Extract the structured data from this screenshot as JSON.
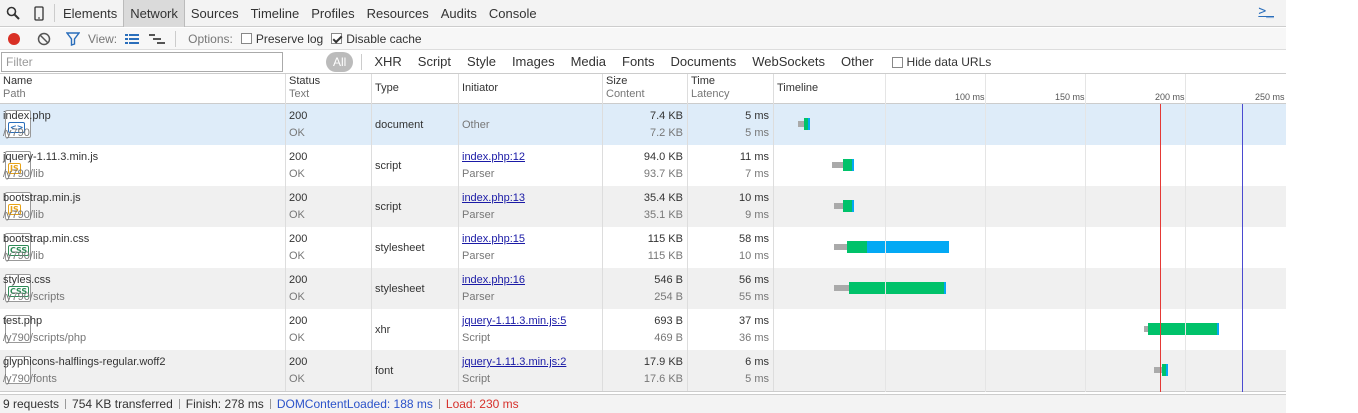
{
  "tabs": [
    "Elements",
    "Network",
    "Sources",
    "Timeline",
    "Profiles",
    "Resources",
    "Audits",
    "Console"
  ],
  "active_tab": "Network",
  "console_toggle": ">_",
  "controls": {
    "view_label": "View:",
    "options_label": "Options:",
    "preserve_log": "Preserve log",
    "disable_cache": "Disable cache",
    "preserve_log_checked": false,
    "disable_cache_checked": true
  },
  "filter": {
    "placeholder": "Filter",
    "types": [
      "All",
      "XHR",
      "Script",
      "Style",
      "Images",
      "Media",
      "Fonts",
      "Documents",
      "WebSockets",
      "Other"
    ],
    "active_type": "All",
    "hide_data_urls": "Hide data URLs"
  },
  "columns": {
    "name": "Name",
    "path": "Path",
    "status": "Status",
    "text": "Text",
    "type": "Type",
    "initiator": "Initiator",
    "size": "Size",
    "content": "Content",
    "time": "Time",
    "latency": "Latency",
    "timeline": "Timeline"
  },
  "timeline_ticks": [
    "100 ms",
    "150 ms",
    "200 ms",
    "250 ms"
  ],
  "requests": [
    {
      "name": "index.php",
      "path": "/y790",
      "status": "200",
      "text": "OK",
      "type": "document",
      "initiator": "Other",
      "initiator_link": false,
      "initiator_sub": "",
      "size": "7.4 KB",
      "content": "7.2 KB",
      "time": "5 ms",
      "latency": "5 ms",
      "icon": "html-icon",
      "badge": "<>",
      "badge_color": "#2a6ebb",
      "timing_ms": {
        "start": 6,
        "wait": 3,
        "total": 5
      }
    },
    {
      "name": "jquery-1.11.3.min.js",
      "path": "/y790/lib",
      "status": "200",
      "text": "OK",
      "type": "script",
      "initiator": "index.php:12",
      "initiator_link": true,
      "initiator_sub": "Parser",
      "size": "94.0 KB",
      "content": "93.7 KB",
      "time": "11 ms",
      "latency": "7 ms",
      "icon": "js-icon",
      "badge": "JS",
      "badge_color": "#e8a317",
      "timing_ms": {
        "start": 23,
        "wait": 6,
        "total": 11
      }
    },
    {
      "name": "bootstrap.min.js",
      "path": "/y790/lib",
      "status": "200",
      "text": "OK",
      "type": "script",
      "initiator": "index.php:13",
      "initiator_link": true,
      "initiator_sub": "Parser",
      "size": "35.4 KB",
      "content": "35.1 KB",
      "time": "10 ms",
      "latency": "9 ms",
      "icon": "js-icon",
      "badge": "JS",
      "badge_color": "#e8a317",
      "timing_ms": {
        "start": 24,
        "wait": 5,
        "total": 10
      }
    },
    {
      "name": "bootstrap.min.css",
      "path": "/y790/lib",
      "status": "200",
      "text": "OK",
      "type": "stylesheet",
      "initiator": "index.php:15",
      "initiator_link": true,
      "initiator_sub": "Parser",
      "size": "115 KB",
      "content": "115 KB",
      "time": "58 ms",
      "latency": "10 ms",
      "icon": "css-icon",
      "badge": "CSS",
      "badge_color": "#2e8b57",
      "timing_ms": {
        "start": 24,
        "wait": 7,
        "total": 58
      }
    },
    {
      "name": "styles.css",
      "path": "/y790/scripts",
      "status": "200",
      "text": "OK",
      "type": "stylesheet",
      "initiator": "index.php:16",
      "initiator_link": true,
      "initiator_sub": "Parser",
      "size": "546 B",
      "content": "254 B",
      "time": "56 ms",
      "latency": "55 ms",
      "icon": "css-icon",
      "badge": "CSS",
      "badge_color": "#2e8b57",
      "timing_ms": {
        "start": 24,
        "wait": 8,
        "total": 56
      }
    },
    {
      "name": "test.php",
      "path": "/y790/scripts/php",
      "status": "200",
      "text": "OK",
      "type": "xhr",
      "initiator": "jquery-1.11.3.min.js:5",
      "initiator_link": true,
      "initiator_sub": "Script",
      "size": "693 B",
      "content": "469 B",
      "time": "37 ms",
      "latency": "36 ms",
      "icon": "file-icon",
      "badge": "",
      "badge_color": "",
      "timing_ms": {
        "start": 180,
        "wait": 2,
        "total": 37
      }
    },
    {
      "name": "glyphicons-halflings-regular.woff2",
      "path": "/y790/fonts",
      "status": "200",
      "text": "OK",
      "type": "font",
      "initiator": "jquery-1.11.3.min.js:2",
      "initiator_link": true,
      "initiator_sub": "Script",
      "size": "17.9 KB",
      "content": "17.6 KB",
      "time": "6 ms",
      "latency": "5 ms",
      "icon": "file-icon",
      "badge": "",
      "badge_color": "",
      "timing_ms": {
        "start": 185,
        "wait": 4,
        "total": 6
      }
    }
  ],
  "markers_ms": {
    "dom_content_loaded": 188,
    "load": 230
  },
  "status": {
    "requests": "9 requests",
    "transferred": "754 KB transferred",
    "finish": "Finish: 278 ms",
    "dcl": "DOMContentLoaded: 188 ms",
    "load": "Load: 230 ms"
  },
  "colors": {
    "waiting": "#00c26a",
    "receiving": "#03a9f4",
    "stalled": "#aaaaaa",
    "dcl_line": "#4a4ad0",
    "load_line": "#e53935",
    "selected_row": "#deecf9"
  }
}
